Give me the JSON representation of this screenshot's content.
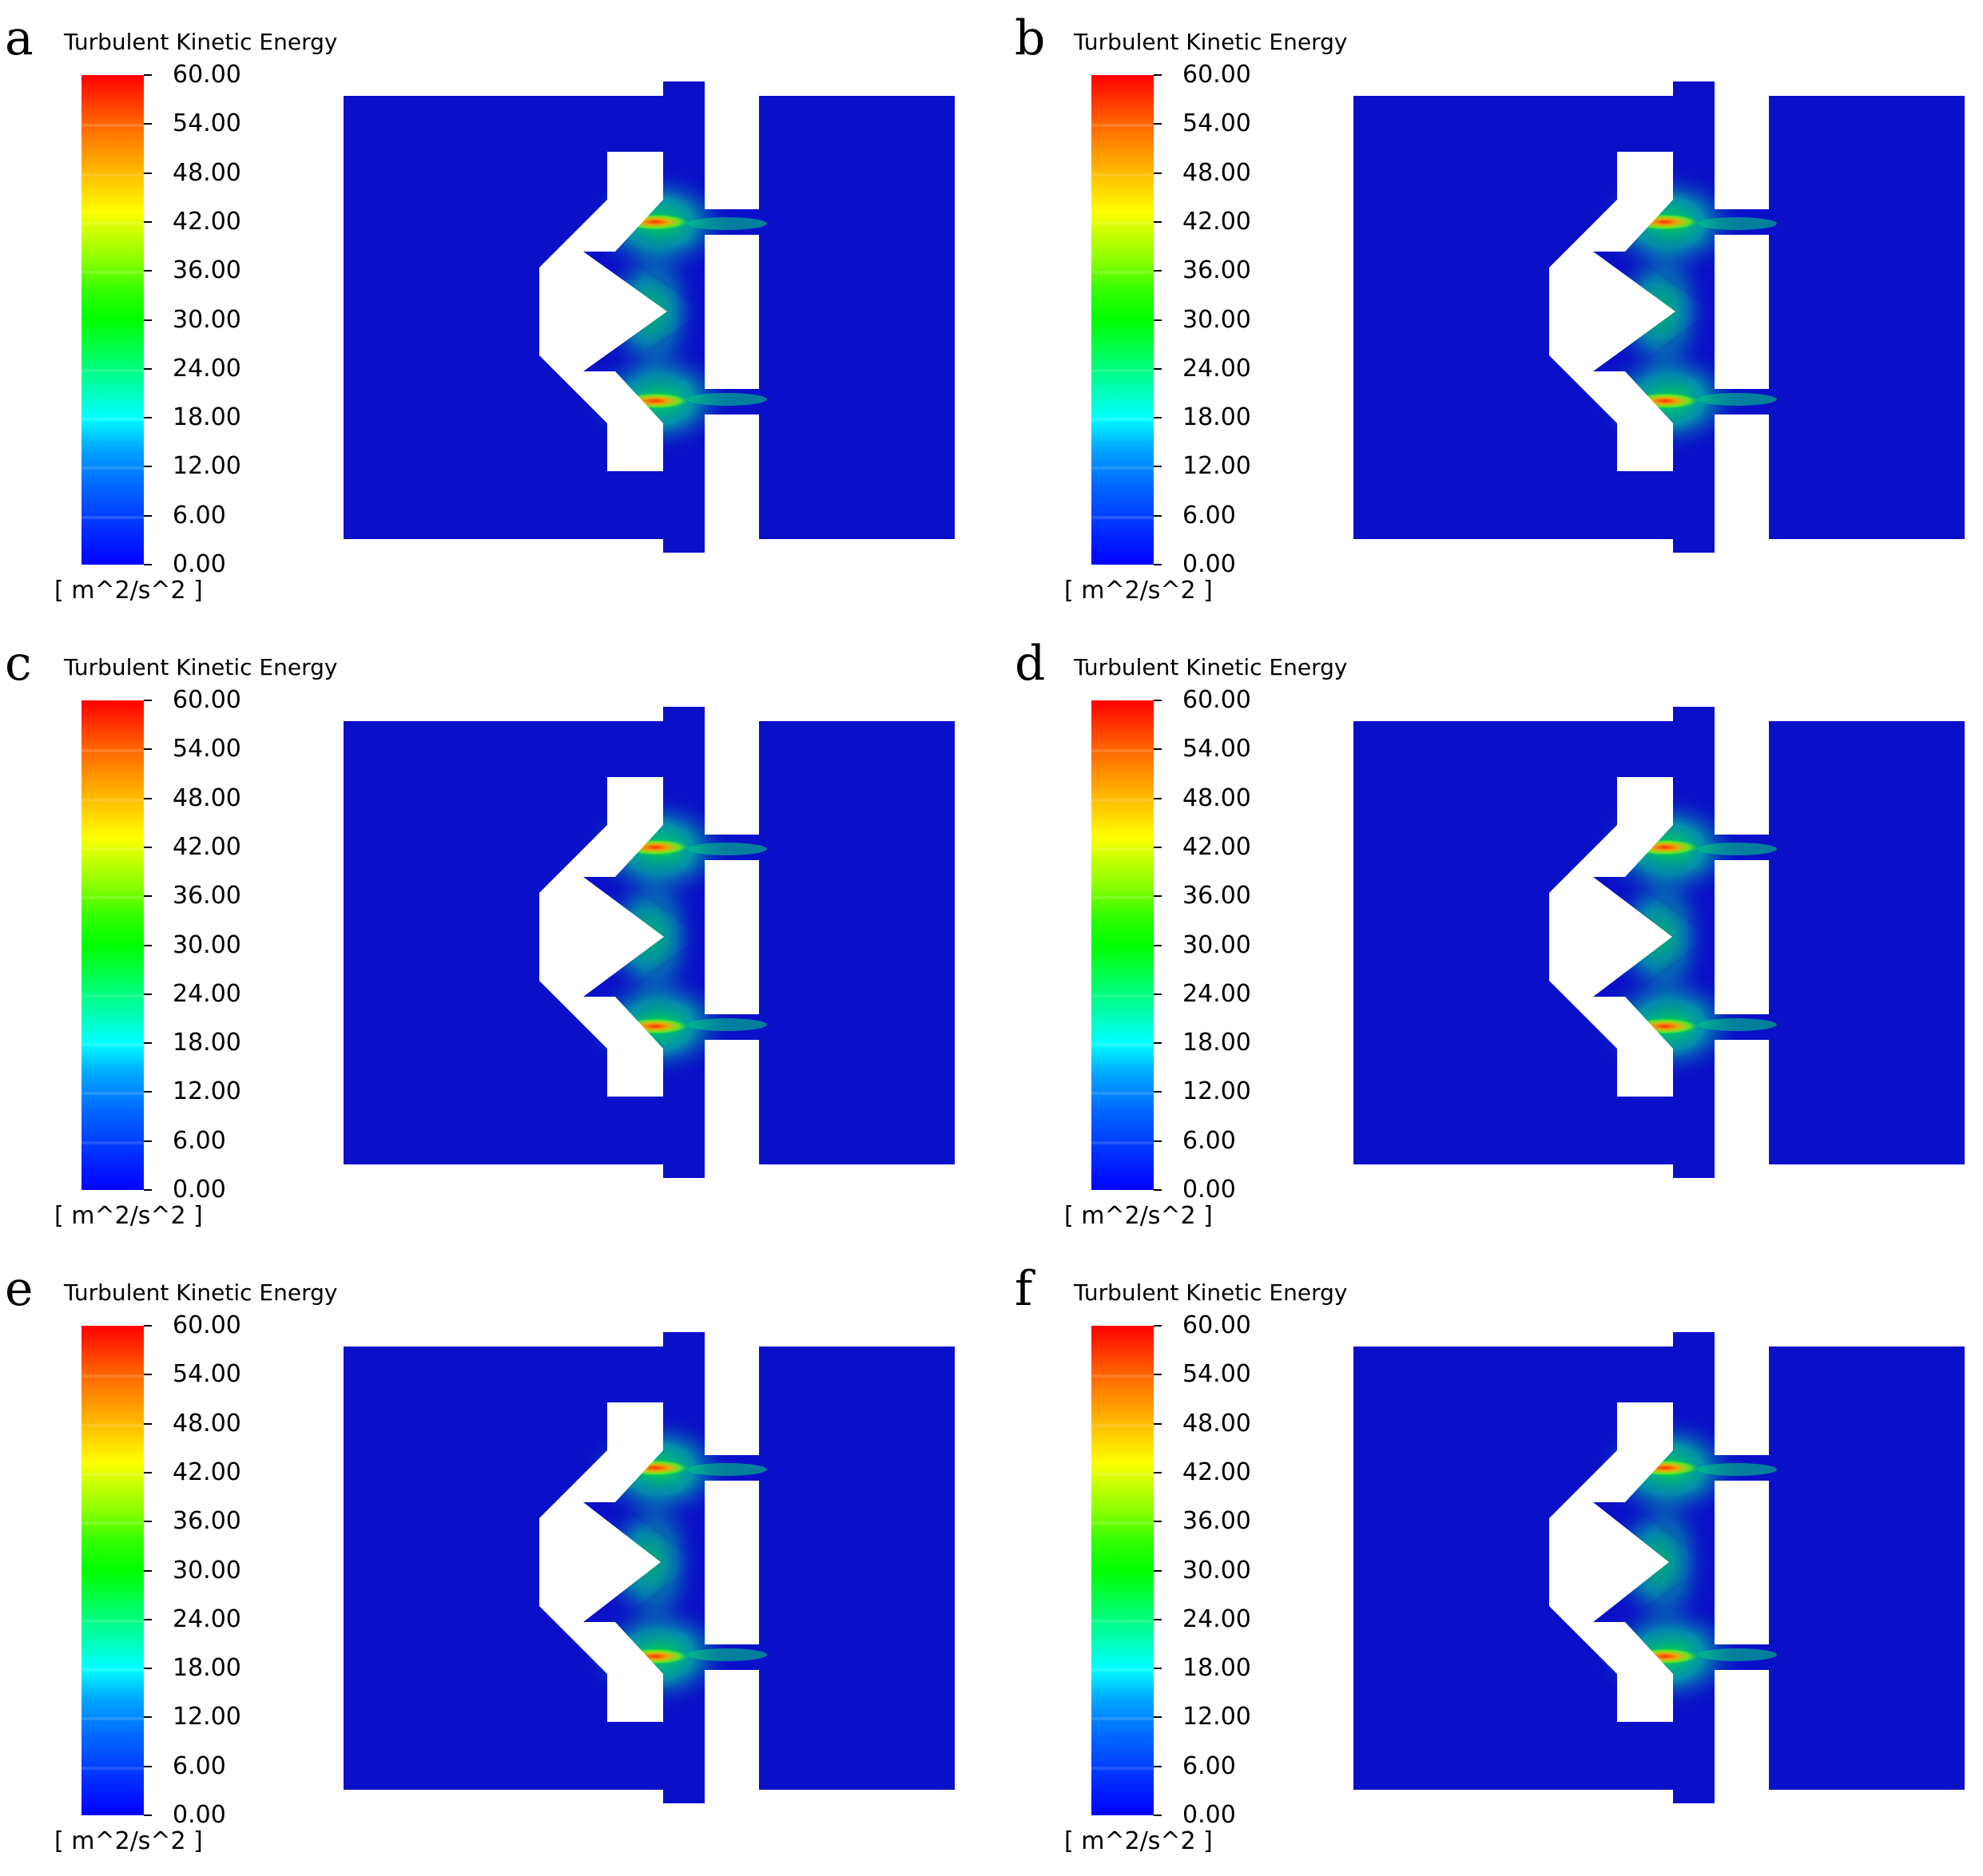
{
  "colorbar": {
    "title": "Turbulent Kinetic Energy",
    "units": "[ m^2/s^2 ]",
    "ticks": [
      "60.00",
      "54.00",
      "48.00",
      "42.00",
      "36.00",
      "30.00",
      "24.00",
      "18.00",
      "12.00",
      "6.00",
      "0.00"
    ],
    "min": 0,
    "max": 60,
    "colormap": "rainbow (blue to red)"
  },
  "panels": [
    {
      "letter": "a",
      "variant": 0
    },
    {
      "letter": "b",
      "variant": 1
    },
    {
      "letter": "c",
      "variant": 2
    },
    {
      "letter": "d",
      "variant": 3
    },
    {
      "letter": "e",
      "variant": 4
    },
    {
      "letter": "f",
      "variant": 5
    }
  ],
  "colors": {
    "background_field": "#0a10c8",
    "solid": "#ffffff"
  }
}
